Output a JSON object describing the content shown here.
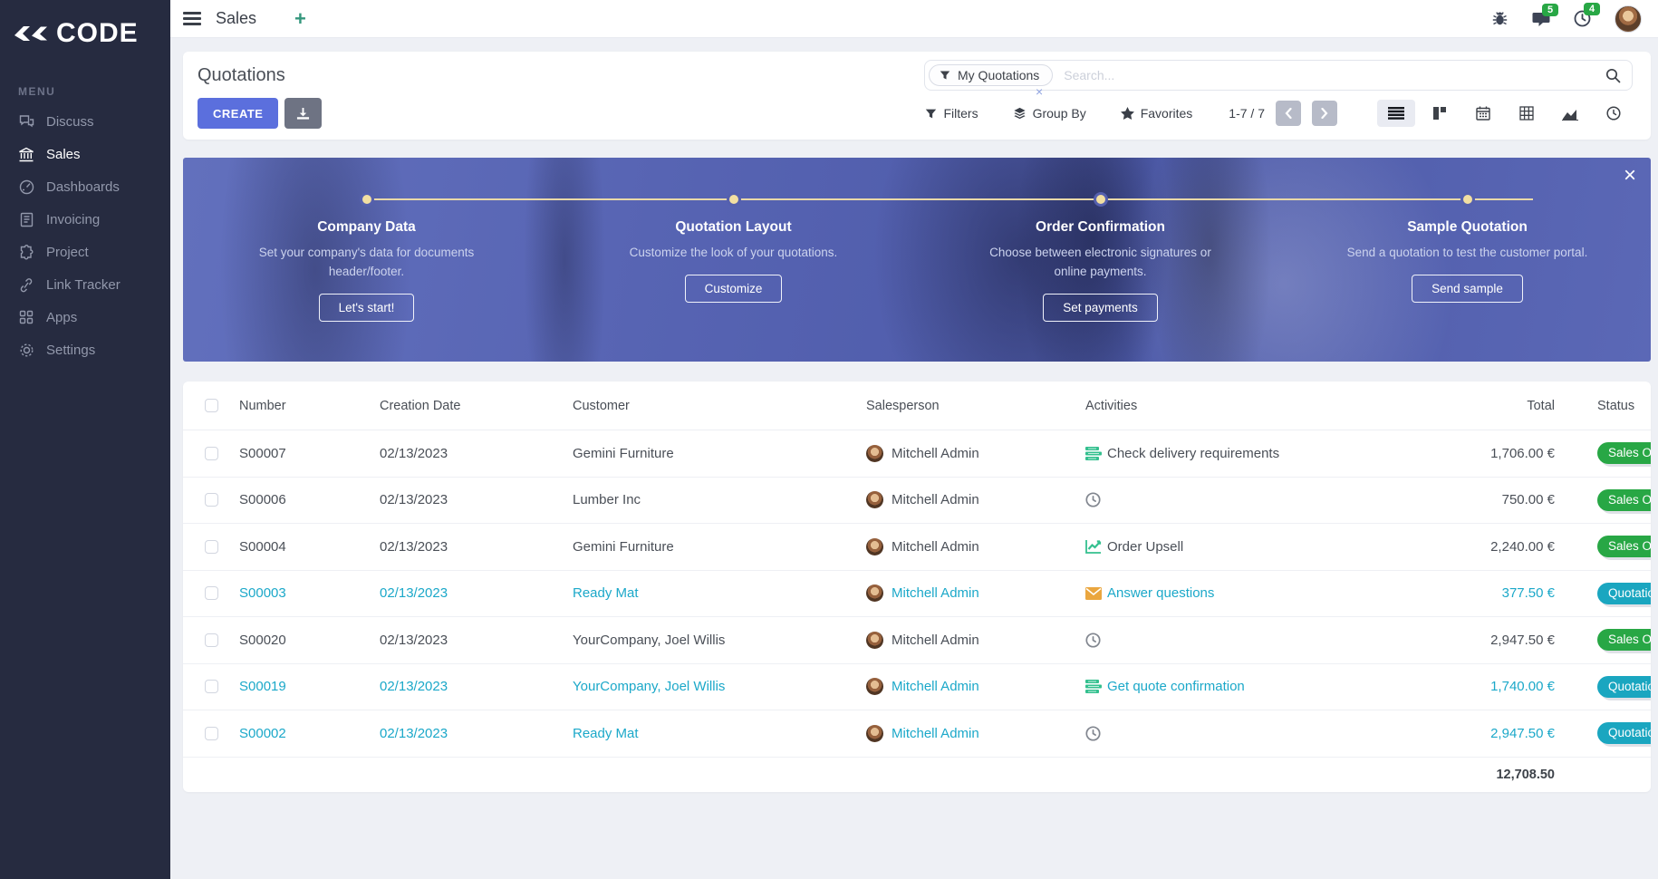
{
  "brand": {
    "name": "CODE"
  },
  "sidebar": {
    "menu_label": "MENU",
    "items": [
      {
        "label": "Discuss",
        "icon": "discuss-icon",
        "active": false
      },
      {
        "label": "Sales",
        "icon": "sales-icon",
        "active": true
      },
      {
        "label": "Dashboards",
        "icon": "dashboards-icon",
        "active": false
      },
      {
        "label": "Invoicing",
        "icon": "invoicing-icon",
        "active": false
      },
      {
        "label": "Project",
        "icon": "project-icon",
        "active": false
      },
      {
        "label": "Link Tracker",
        "icon": "link-tracker-icon",
        "active": false
      },
      {
        "label": "Apps",
        "icon": "apps-icon",
        "active": false
      },
      {
        "label": "Settings",
        "icon": "settings-icon",
        "active": false
      }
    ]
  },
  "topbar": {
    "app_title": "Sales",
    "messages_badge": "5",
    "activities_badge": "4"
  },
  "header": {
    "title": "Quotations",
    "create_label": "CREATE",
    "search": {
      "facet": "My Quotations",
      "placeholder": "Search...",
      "facet_remove": "×"
    },
    "filters_label": "Filters",
    "group_by_label": "Group By",
    "favorites_label": "Favorites",
    "pagination": "1-7 / 7",
    "views": [
      {
        "icon": "list-view-icon",
        "active": true
      },
      {
        "icon": "kanban-view-icon",
        "active": false
      },
      {
        "icon": "calendar-view-icon",
        "active": false
      },
      {
        "icon": "pivot-view-icon",
        "active": false
      },
      {
        "icon": "graph-view-icon",
        "active": false
      },
      {
        "icon": "activity-view-icon",
        "active": false
      }
    ]
  },
  "banner": {
    "close_label": "×",
    "steps": [
      {
        "title": "Company Data",
        "description": "Set your company's data for documents header/footer.",
        "button": "Let's start!"
      },
      {
        "title": "Quotation Layout",
        "description": "Customize the look of your quotations.",
        "button": "Customize"
      },
      {
        "title": "Order Confirmation",
        "description": "Choose between electronic signatures or online payments.",
        "button": "Set payments"
      },
      {
        "title": "Sample Quotation",
        "description": "Send a quotation to test the customer portal.",
        "button": "Send sample"
      }
    ]
  },
  "table": {
    "columns": {
      "number": "Number",
      "creation_date": "Creation Date",
      "customer": "Customer",
      "salesperson": "Salesperson",
      "activities": "Activities",
      "total": "Total",
      "status": "Status"
    },
    "rows": [
      {
        "number": "S00007",
        "date": "02/13/2023",
        "customer": "Gemini Furniture",
        "salesperson": "Mitchell Admin",
        "activity": "Check delivery requirements",
        "activity_icon": "tasks-activity-icon",
        "total": "1,706.00 €",
        "status": "Sales Order",
        "highlight": false
      },
      {
        "number": "S00006",
        "date": "02/13/2023",
        "customer": "Lumber Inc",
        "salesperson": "Mitchell Admin",
        "activity": "",
        "activity_icon": "clock-activity-icon",
        "total": "750.00 €",
        "status": "Sales Order",
        "highlight": false
      },
      {
        "number": "S00004",
        "date": "02/13/2023",
        "customer": "Gemini Furniture",
        "salesperson": "Mitchell Admin",
        "activity": "Order Upsell",
        "activity_icon": "chart-activity-icon",
        "total": "2,240.00 €",
        "status": "Sales Order",
        "highlight": false
      },
      {
        "number": "S00003",
        "date": "02/13/2023",
        "customer": "Ready Mat",
        "salesperson": "Mitchell Admin",
        "activity": "Answer questions",
        "activity_icon": "envelope-activity-icon",
        "total": "377.50 €",
        "status": "Quotation",
        "highlight": true
      },
      {
        "number": "S00020",
        "date": "02/13/2023",
        "customer": "YourCompany, Joel Willis",
        "salesperson": "Mitchell Admin",
        "activity": "",
        "activity_icon": "clock-activity-icon",
        "total": "2,947.50 €",
        "status": "Sales Order",
        "highlight": false
      },
      {
        "number": "S00019",
        "date": "02/13/2023",
        "customer": "YourCompany, Joel Willis",
        "salesperson": "Mitchell Admin",
        "activity": "Get quote confirmation",
        "activity_icon": "tasks-activity-icon",
        "total": "1,740.00 €",
        "status": "Quotation",
        "highlight": true
      },
      {
        "number": "S00002",
        "date": "02/13/2023",
        "customer": "Ready Mat",
        "salesperson": "Mitchell Admin",
        "activity": "",
        "activity_icon": "clock-activity-icon",
        "total": "2,947.50 €",
        "status": "Quotation",
        "highlight": true
      }
    ],
    "footer_total": "12,708.50"
  },
  "colors": {
    "sidebar_bg": "#262b40",
    "accent_indigo": "#5b6fdd",
    "accent_teal": "#1ba8c9",
    "badge_green": "#28a745",
    "badge_teal": "#1aa6c0",
    "banner_blue": "#4d5aa8",
    "timeline_cream": "#e9d9a8",
    "activity_green": "#34c08f",
    "activity_orange": "#eaa63f"
  }
}
